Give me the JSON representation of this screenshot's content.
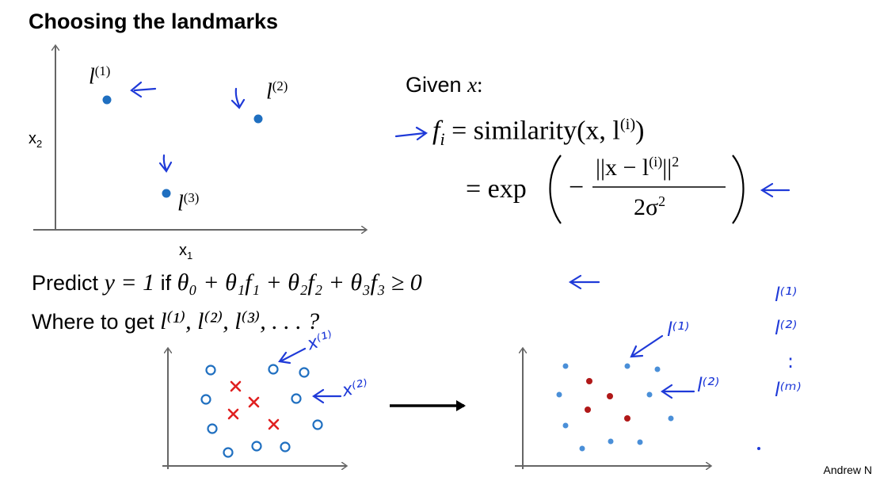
{
  "slide": {
    "title": "Choosing the landmarks",
    "credit": "Andrew N"
  },
  "top_plot": {
    "xlabel": "x",
    "xlabel_sub": "1",
    "ylabel": "x",
    "ylabel_sub": "2",
    "landmarks": [
      {
        "label": "l",
        "sup": "(1)"
      },
      {
        "label": "l",
        "sup": "(2)"
      },
      {
        "label": "l",
        "sup": "(3)"
      }
    ]
  },
  "formula": {
    "given": "Given",
    "given_var": "x",
    "given_colon": ":",
    "lhs": "f",
    "lhs_sub": "i",
    "eq1": "= similarity(x, l",
    "eq1_sup": "(i)",
    "eq1_close": ")",
    "eq2_prefix": "= exp",
    "numerator": "||x − l",
    "numerator_sup": "(i)",
    "numerator_tail": "||",
    "numerator_pow": "2",
    "denominator": "2σ",
    "denominator_pow": "2",
    "minus": "−"
  },
  "predict": {
    "prefix": "Predict",
    "y_eq": "y = 1",
    "if": "if",
    "expr": "θ₀ + θ₁f₁ + θ₂f₂ + θ₃f₃ ≥ 0"
  },
  "where": {
    "prefix": "Where to get",
    "expr": "l⁽¹⁾, l⁽²⁾, l⁽³⁾, . . . ?"
  },
  "annotations": {
    "x1": "x⁽¹⁾",
    "x2": "x⁽²⁾",
    "l1": "l⁽¹⁾",
    "l2": "l⁽²⁾",
    "list": [
      "l⁽¹⁾",
      "l⁽²⁾",
      ":",
      "l⁽ᵐ⁾"
    ]
  },
  "colors": {
    "dot_blue": "#1f6fc0",
    "light_blue": "#4a8fd8",
    "red": "#e02020",
    "dark_red": "#b01818",
    "ink_blue": "#1f3ad8",
    "axis": "#666666"
  }
}
